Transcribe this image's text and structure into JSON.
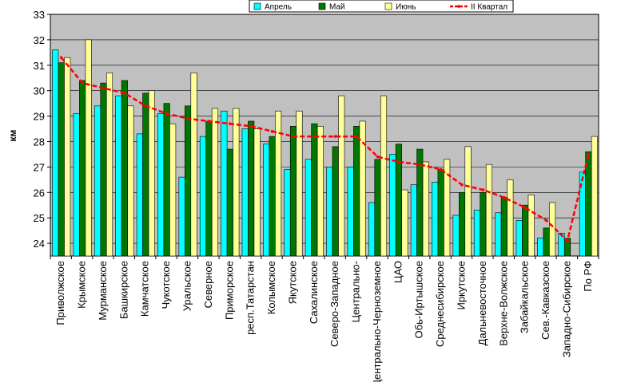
{
  "chart_data": {
    "type": "bar",
    "ylabel": "км",
    "ylim": [
      23.5,
      33
    ],
    "yticks": [
      24,
      25,
      26,
      27,
      28,
      29,
      30,
      31,
      32,
      33
    ],
    "grid": "horizontal",
    "legend_position": "top-right",
    "categories": [
      "Приволжское",
      "Крымское",
      "Мурманское",
      "Башкирское",
      "Камчатское",
      "Чукотское",
      "Уральское",
      "Северное",
      "Приморское",
      "респ.Татарстан",
      "Колымское",
      "Якутское",
      "Сахалинское",
      "Северо-Западное",
      "Центрально-",
      "Центрально-Черноземное",
      "ЦАО",
      "Обь-Иртышское",
      "Среднесибирское",
      "Иркутское",
      "Дальневосточное",
      "Верхне-Волжское",
      "Забайкальское",
      "Сев.-Кавказское",
      "Западно-Сибирское",
      "По РФ"
    ],
    "series": [
      {
        "name": "Апрель",
        "type": "bar",
        "color": "#00ffff",
        "values": [
          31.6,
          29.1,
          29.4,
          29.8,
          28.3,
          29.1,
          26.6,
          28.2,
          29.2,
          28.5,
          27.9,
          26.9,
          27.3,
          27.0,
          27.0,
          25.6,
          27.5,
          26.3,
          26.4,
          25.1,
          25.3,
          25.2,
          24.9,
          24.2,
          24.4,
          26.8
        ]
      },
      {
        "name": "Май",
        "type": "bar",
        "color": "#007700",
        "values": [
          31.1,
          30.4,
          30.3,
          30.4,
          29.9,
          29.5,
          29.4,
          28.8,
          27.7,
          28.8,
          28.2,
          28.6,
          28.7,
          27.8,
          28.6,
          27.3,
          27.9,
          27.7,
          26.9,
          26.0,
          26.0,
          25.8,
          25.5,
          24.6,
          24.2,
          27.6
        ]
      },
      {
        "name": "Июнь",
        "type": "bar",
        "color": "#ffff99",
        "values": [
          31.3,
          32.0,
          30.7,
          29.4,
          30.0,
          28.7,
          30.7,
          29.3,
          29.3,
          28.5,
          29.2,
          29.2,
          28.6,
          29.8,
          28.8,
          29.8,
          26.1,
          27.2,
          27.3,
          27.8,
          27.1,
          26.5,
          25.9,
          25.6,
          23.5,
          28.2
        ]
      },
      {
        "name": "II Квартал",
        "type": "line",
        "color": "#ff0000",
        "values": [
          31.3,
          30.3,
          30.1,
          29.9,
          29.4,
          29.1,
          28.9,
          28.8,
          28.7,
          28.6,
          28.4,
          28.2,
          28.2,
          28.2,
          28.2,
          27.4,
          27.2,
          27.1,
          26.9,
          26.3,
          26.1,
          25.8,
          25.4,
          24.9,
          24.1,
          27.5
        ]
      }
    ]
  }
}
